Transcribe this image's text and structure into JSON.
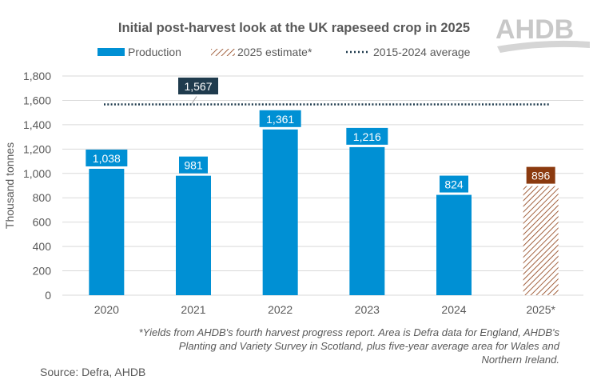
{
  "logo_text": "AHDB",
  "chart_data": {
    "type": "bar",
    "title": "Initial post-harvest look at the UK rapeseed crop in 2025",
    "ylabel": "Thousand tonnes",
    "xlabel": "",
    "ylim": [
      0,
      1800
    ],
    "yticks": [
      "0",
      "200",
      "400",
      "600",
      "800",
      "1,000",
      "1,200",
      "1,400",
      "1,600",
      "1,800"
    ],
    "ytick_values": [
      0,
      200,
      400,
      600,
      800,
      1000,
      1200,
      1400,
      1600,
      1800
    ],
    "grid": true,
    "legend_position": "top",
    "categories": [
      "2020",
      "2021",
      "2022",
      "2023",
      "2024",
      "2025*"
    ],
    "series": [
      {
        "name": "Production",
        "values": [
          1038,
          981,
          1361,
          1216,
          824,
          null
        ],
        "labels": [
          "1,038",
          "981",
          "1,361",
          "1,216",
          "824",
          ""
        ],
        "color": "#0090D4"
      },
      {
        "name": "2025 estimate*",
        "values": [
          null,
          null,
          null,
          null,
          null,
          896
        ],
        "labels": [
          "",
          "",
          "",
          "",
          "",
          "896"
        ],
        "color": "#8B3A0F",
        "pattern": "diagonal-hatch"
      },
      {
        "name": "2015-2024 average",
        "value": 1567,
        "label": "1,567",
        "style": "dotted-line",
        "color": "#1F3B4D"
      }
    ],
    "footnote": [
      "*Yields from AHDB's fourth harvest progress report. Area is Defra data for England, AHDB's",
      "Planting and Variety Survey in Scotland, plus five-year average area for Wales and",
      "Northern Ireland."
    ],
    "source": "Source: Defra, AHDB"
  }
}
